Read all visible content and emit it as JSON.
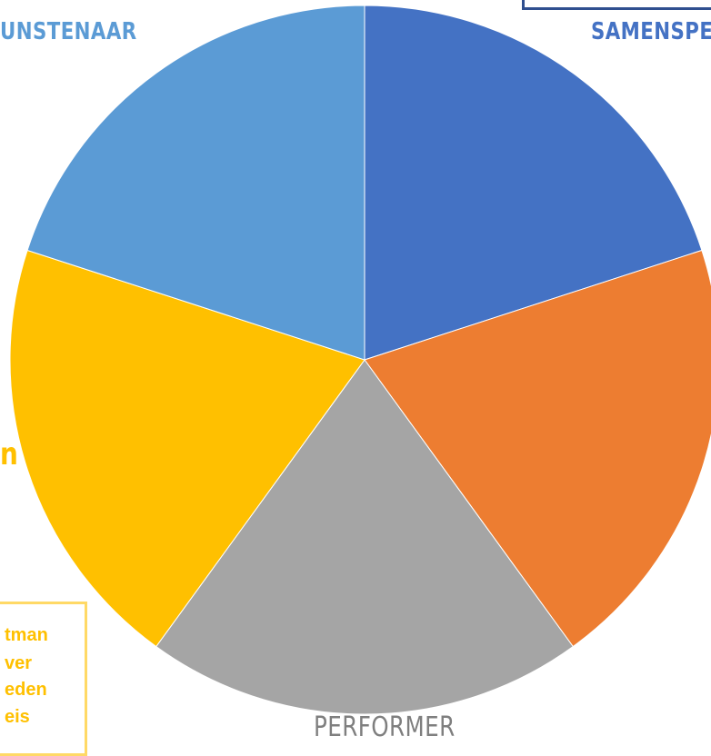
{
  "chart_data": {
    "type": "pie",
    "categories": [
      "SAMENSPE",
      "",
      "PERFORMER",
      "",
      "UNSTENAAR"
    ],
    "values": [
      20,
      20,
      20,
      20,
      20
    ],
    "colors": [
      "#4472c4",
      "#ed7d31",
      "#a5a5a5",
      "#ffc000",
      "#5b9bd5"
    ]
  },
  "labels": {
    "kunstenaar": "UNSTENAAR",
    "samenspeler": "SAMENSPE",
    "performer": "PERFORMER",
    "left_fragment": "n"
  },
  "label_colors": {
    "kunstenaar": "#5b9bd5",
    "samenspeler": "#4472c4",
    "performer": "#7f7f7f",
    "left_fragment": "#ffc000",
    "text_box": "#ffc000"
  },
  "text_box": {
    "lines": [
      "tman",
      "ver",
      "eden",
      "eis"
    ]
  }
}
